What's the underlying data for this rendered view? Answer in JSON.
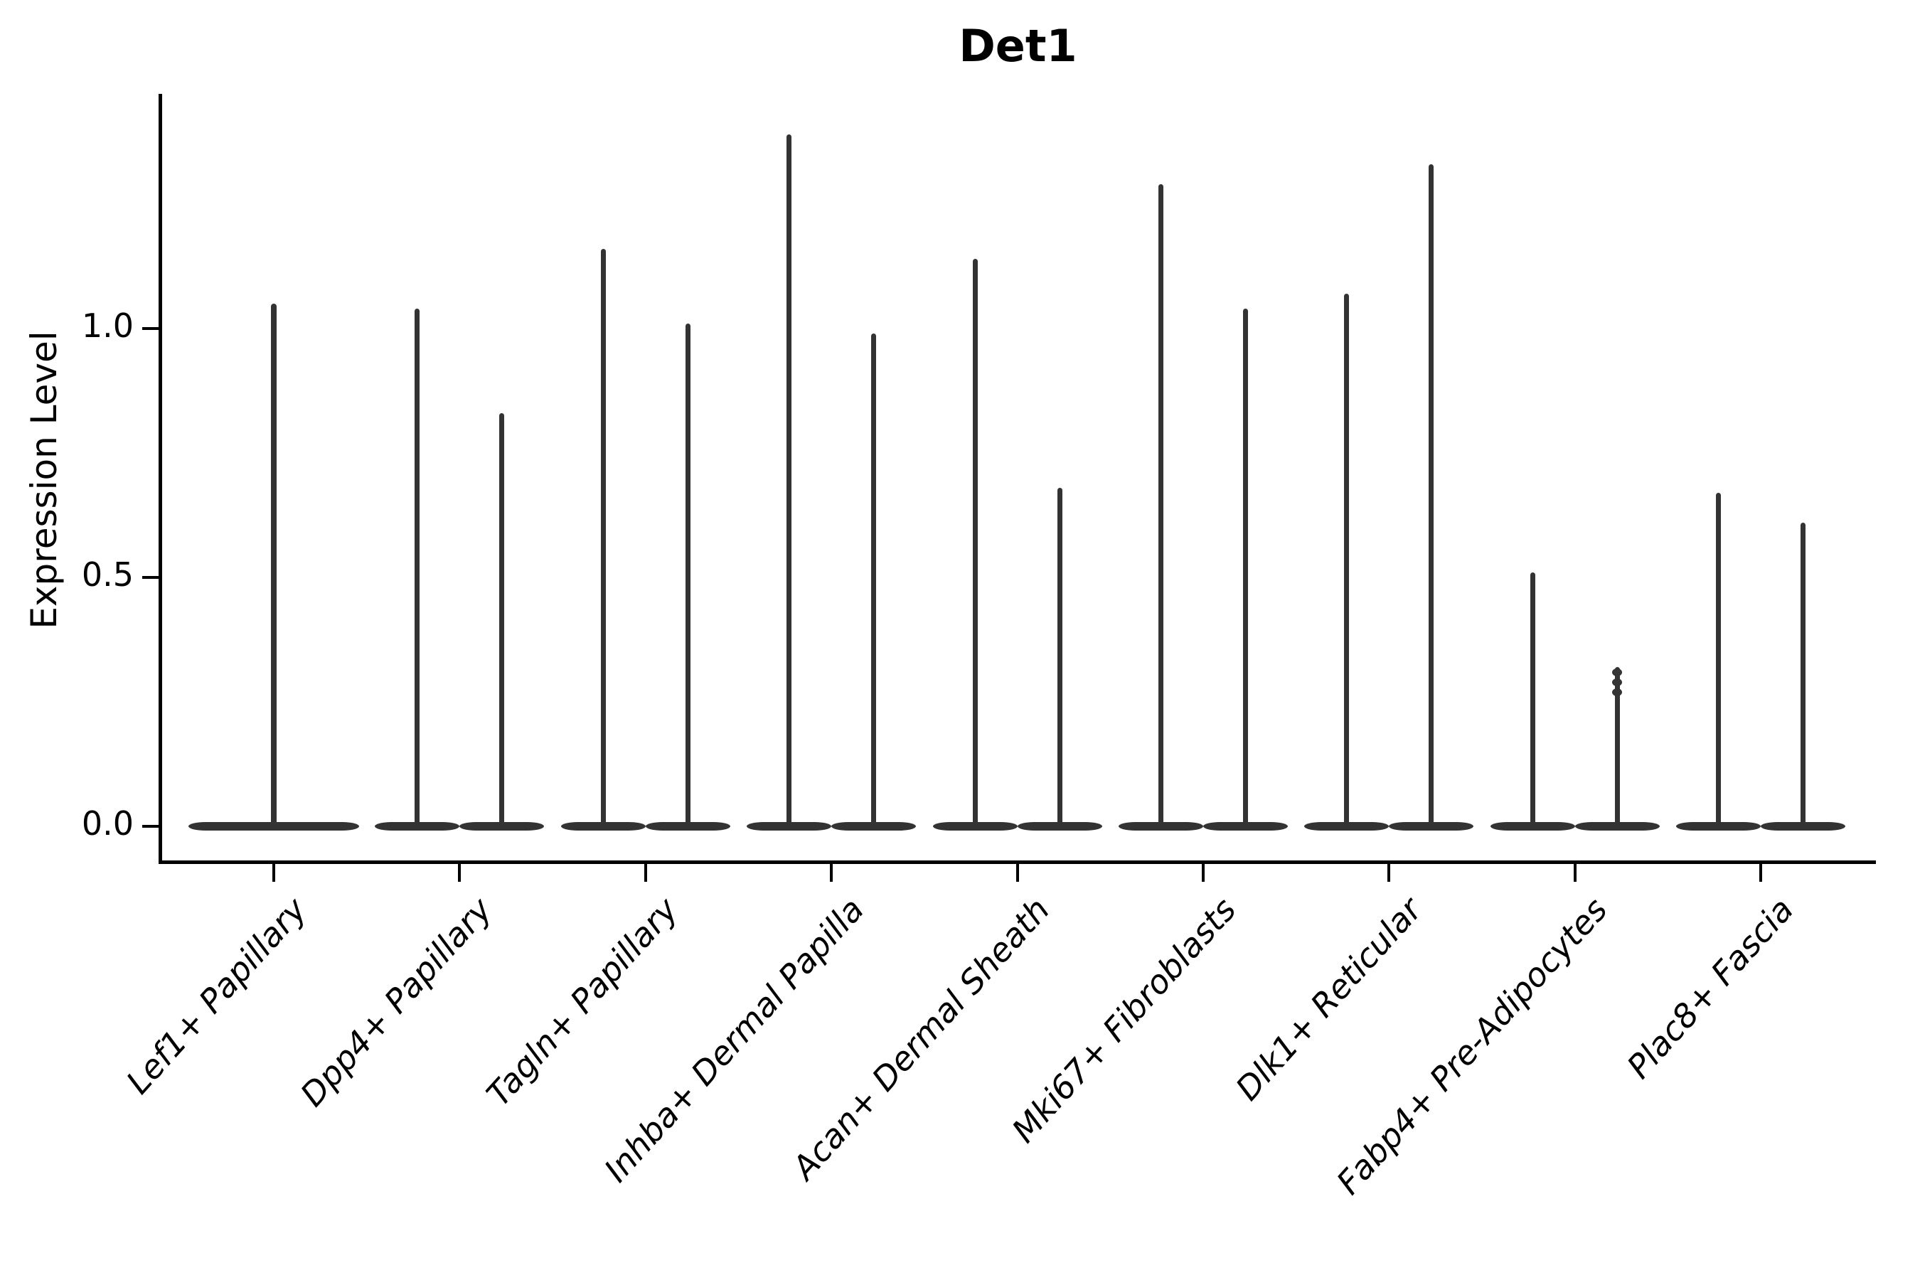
{
  "chart_data": {
    "type": "violin",
    "title": "Det1",
    "ylabel": "Expression Level",
    "xlabel": "",
    "yticks": [
      0.0,
      0.5,
      1.0
    ],
    "ytick_labels": [
      "0.0",
      "0.5",
      "1.0"
    ],
    "ylim": [
      -0.07,
      1.47
    ],
    "grid": false,
    "legend": "none",
    "violin_shape": "flat wide base at 0 with thin vertical spike to max",
    "categories": [
      {
        "label": "Lef1+ Papillary",
        "violins": [
          {
            "position": "center",
            "width": "full",
            "max_expression": 1.05
          }
        ]
      },
      {
        "label": "Dpp4+ Papillary",
        "violins": [
          {
            "position": "left",
            "max_expression": 1.04
          },
          {
            "position": "right",
            "max_expression": 0.83
          }
        ]
      },
      {
        "label": "Tagln+ Papillary",
        "violins": [
          {
            "position": "left",
            "max_expression": 1.16
          },
          {
            "position": "right",
            "max_expression": 1.01
          }
        ]
      },
      {
        "label": "Inhba+ Dermal Papilla",
        "violins": [
          {
            "position": "left",
            "max_expression": 1.39
          },
          {
            "position": "right",
            "max_expression": 0.99
          }
        ]
      },
      {
        "label": "Acan+ Dermal Sheath",
        "violins": [
          {
            "position": "left",
            "max_expression": 1.14
          },
          {
            "position": "right",
            "max_expression": 0.68
          }
        ]
      },
      {
        "label": "Mki67+ Fibroblasts",
        "violins": [
          {
            "position": "left",
            "max_expression": 1.29
          },
          {
            "position": "right",
            "max_expression": 1.04
          }
        ]
      },
      {
        "label": "Dlk1+ Reticular",
        "violins": [
          {
            "position": "left",
            "max_expression": 1.07
          },
          {
            "position": "right",
            "max_expression": 1.33
          }
        ]
      },
      {
        "label": "Fabp4+ Pre-Adipocytes",
        "violins": [
          {
            "position": "left",
            "max_expression": 0.51
          },
          {
            "position": "right",
            "max_expression": 0.32,
            "point_knots": [
              0.31,
              0.29,
              0.27
            ]
          }
        ]
      },
      {
        "label": "Plac8+ Fascia",
        "violins": [
          {
            "position": "left",
            "max_expression": 0.67
          },
          {
            "position": "right",
            "max_expression": 0.61
          }
        ]
      }
    ]
  },
  "colors": {
    "violin": "#333333",
    "axis": "#000000",
    "text": "#000000",
    "background": "#ffffff"
  }
}
